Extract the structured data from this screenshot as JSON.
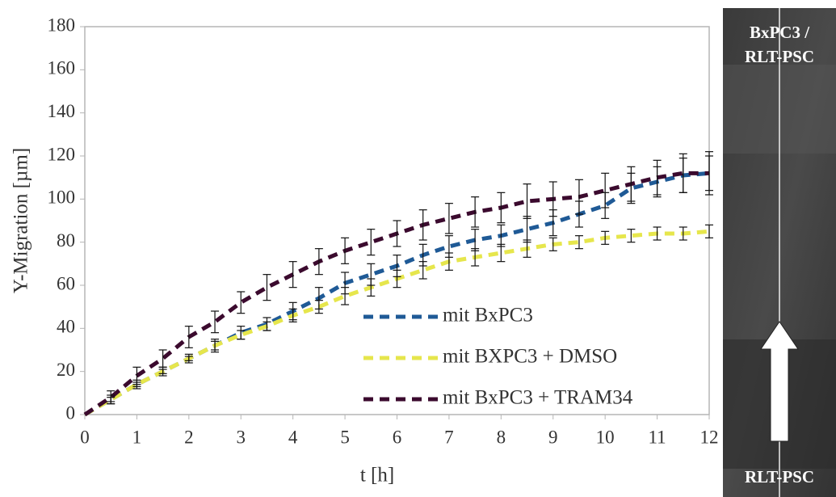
{
  "chart_data": {
    "type": "line",
    "ylabel": "Y-Migration [µm]",
    "xlabel": "t [h]",
    "x": [
      0,
      0.5,
      1,
      1.5,
      2,
      2.5,
      3,
      3.5,
      4,
      4.5,
      5,
      5.5,
      6,
      6.5,
      7,
      7.5,
      8,
      8.5,
      9,
      9.5,
      10,
      10.5,
      11,
      11.5,
      12
    ],
    "series": [
      {
        "name": "mit BxPC3",
        "color": "#1f5a96",
        "values": [
          0,
          7,
          14,
          20,
          26,
          32,
          38,
          42,
          48,
          54,
          61,
          65,
          69,
          74,
          78,
          81,
          83,
          86,
          89,
          93,
          97,
          105,
          108,
          111,
          112
        ],
        "errors": [
          0,
          2,
          2,
          2,
          2,
          3,
          3,
          3,
          4,
          5,
          5,
          5,
          5,
          5,
          5,
          5,
          5,
          6,
          6,
          6,
          6,
          7,
          7,
          8,
          8
        ]
      },
      {
        "name": "mit BXPC3 + DMSO",
        "color": "#e6e64c",
        "values": [
          0,
          7,
          14,
          20,
          26,
          32,
          37,
          41,
          46,
          50,
          55,
          59,
          63,
          67,
          71,
          73,
          75,
          77,
          79,
          80,
          82,
          83,
          84,
          84,
          85
        ],
        "errors": [
          0,
          1,
          1,
          1,
          1,
          2,
          2,
          2,
          3,
          3,
          4,
          4,
          4,
          4,
          4,
          4,
          4,
          4,
          3,
          3,
          3,
          3,
          3,
          3,
          3
        ]
      },
      {
        "name": "mit BxPC3 + TRAM34",
        "color": "#3b0a2e",
        "values": [
          0,
          8,
          18,
          26,
          36,
          43,
          52,
          59,
          65,
          71,
          76,
          80,
          84,
          88,
          91,
          94,
          96,
          99,
          100,
          101,
          104,
          107,
          110,
          112,
          112
        ],
        "errors": [
          0,
          3,
          4,
          4,
          5,
          5,
          5,
          6,
          6,
          6,
          6,
          6,
          6,
          7,
          7,
          7,
          7,
          8,
          8,
          8,
          8,
          8,
          8,
          9,
          10
        ]
      }
    ],
    "xlim": [
      0,
      12
    ],
    "xticks": [
      0,
      1,
      2,
      3,
      4,
      5,
      6,
      7,
      8,
      9,
      10,
      11,
      12
    ],
    "ylim": [
      0,
      180
    ],
    "yticks": [
      0,
      20,
      40,
      60,
      80,
      100,
      120,
      140,
      160,
      180
    ],
    "grid": false,
    "legend": "lower right"
  },
  "image_labels": [
    "BxPC3 /",
    "RLT-PSC",
    "RLT-PSC"
  ]
}
